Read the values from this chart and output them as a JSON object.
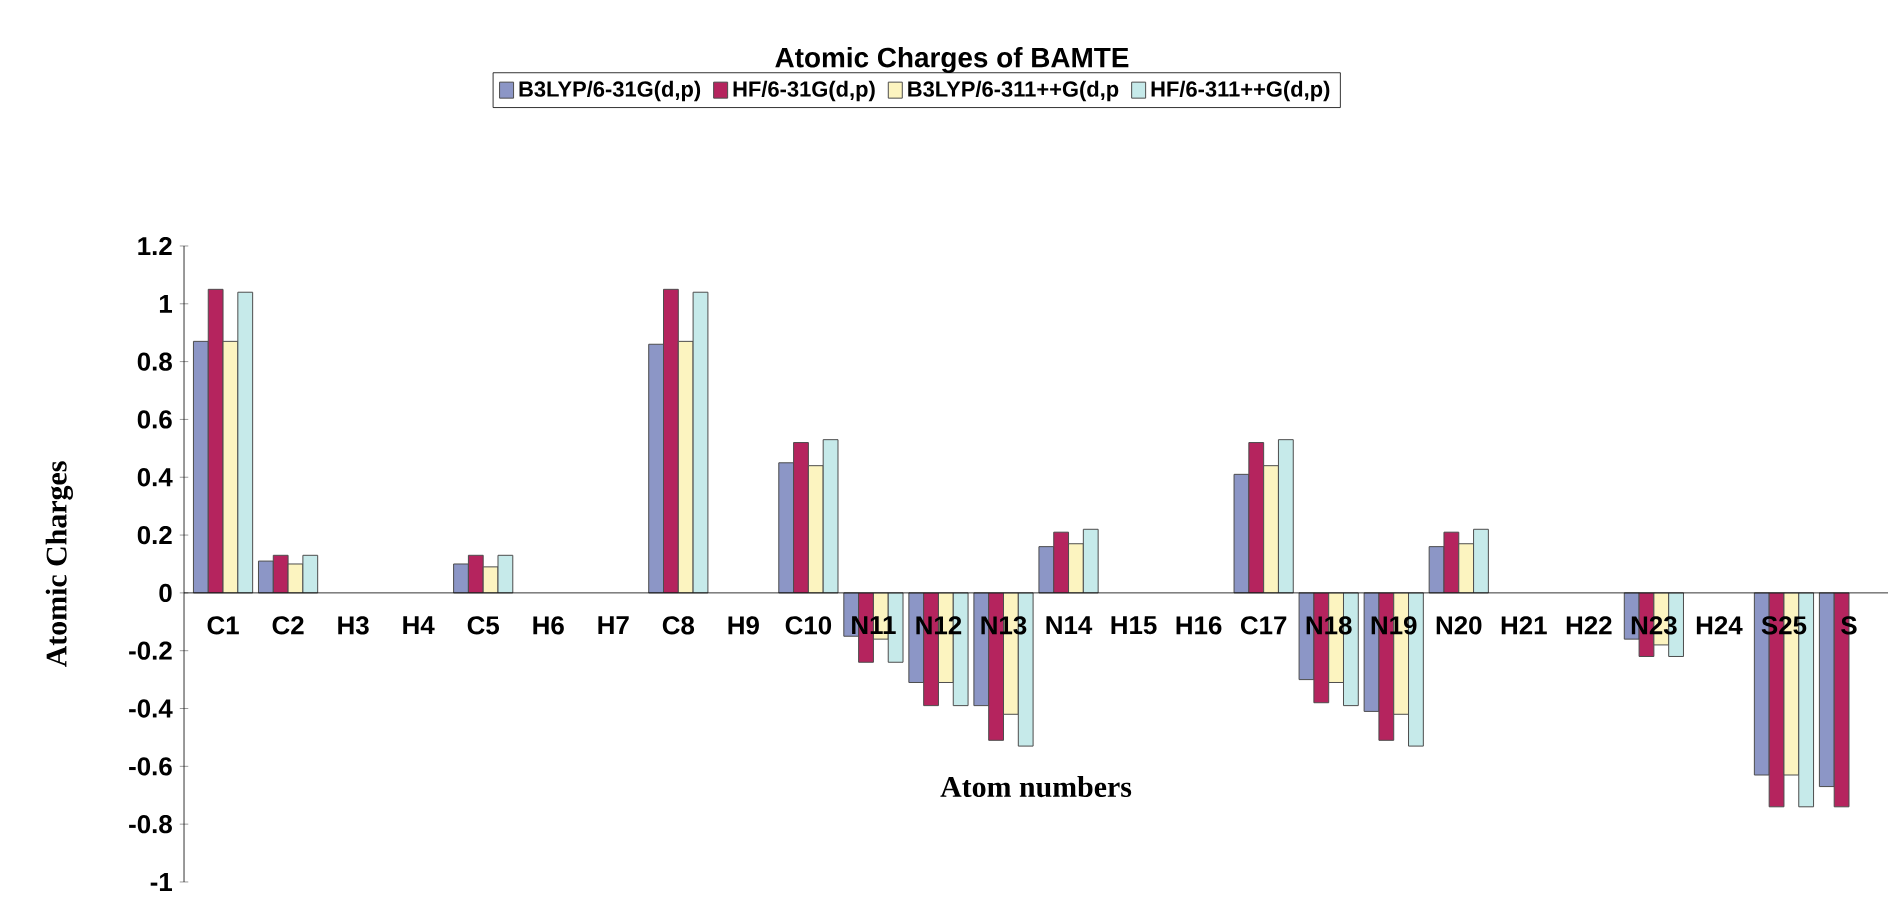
{
  "chart_data": {
    "type": "bar",
    "title": "Atomic Charges of BAMTE",
    "xlabel": "Atom numbers",
    "ylabel": "Atomic Charges",
    "categories": [
      "C1",
      "C2",
      "H3",
      "H4",
      "C5",
      "H6",
      "H7",
      "C8",
      "H9",
      "C10",
      "N11",
      "N12",
      "N13",
      "N14",
      "H15",
      "H16",
      "C17",
      "N18",
      "N19",
      "N20",
      "H21",
      "H22",
      "N23",
      "H24",
      "S25",
      "S"
    ],
    "series": [
      {
        "name": "B3LYP/6-31G(d,p)",
        "color": "#8c96c6",
        "values": [
          0.87,
          0.11,
          null,
          null,
          0.1,
          null,
          null,
          0.86,
          null,
          0.45,
          -0.15,
          -0.31,
          -0.39,
          0.16,
          null,
          null,
          0.41,
          -0.3,
          -0.41,
          0.16,
          null,
          null,
          -0.16,
          null,
          -0.63,
          -0.67
        ]
      },
      {
        "name": "HF/6-31G(d,p)",
        "color": "#b5245e",
        "values": [
          1.05,
          0.13,
          null,
          null,
          0.13,
          null,
          null,
          1.05,
          null,
          0.52,
          -0.24,
          -0.39,
          -0.51,
          0.21,
          null,
          null,
          0.52,
          -0.38,
          -0.51,
          0.21,
          null,
          null,
          -0.22,
          null,
          -0.74,
          -0.74
        ]
      },
      {
        "name": "B3LYP/6-311++G(d,p",
        "color": "#fcf4c0",
        "values": [
          0.87,
          0.1,
          null,
          null,
          0.09,
          null,
          null,
          0.87,
          null,
          0.44,
          -0.16,
          -0.31,
          -0.42,
          0.17,
          null,
          null,
          0.44,
          -0.31,
          -0.42,
          0.17,
          null,
          null,
          -0.18,
          null,
          -0.63,
          null
        ]
      },
      {
        "name": "HF/6-311++G(d,p)",
        "color": "#c6eaea",
        "values": [
          1.04,
          0.13,
          null,
          null,
          0.13,
          null,
          null,
          1.04,
          null,
          0.53,
          -0.24,
          -0.39,
          -0.53,
          0.22,
          null,
          null,
          0.53,
          -0.39,
          -0.53,
          0.22,
          null,
          null,
          -0.22,
          null,
          -0.74,
          null
        ]
      }
    ],
    "ylim": [
      -1,
      1.2
    ],
    "yticks": [
      -1,
      -0.8,
      -0.6,
      -0.4,
      -0.2,
      0,
      0.2,
      0.4,
      0.6,
      0.8,
      1,
      1.2
    ],
    "legend": "top"
  }
}
